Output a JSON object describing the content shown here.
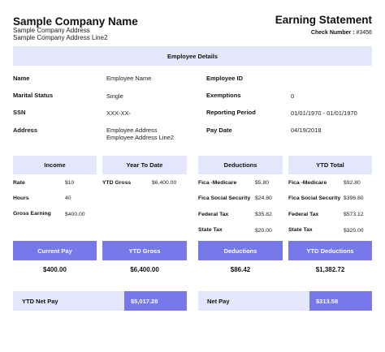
{
  "company": {
    "name": "Sample Company Name",
    "address_line1": "Sample Company Address",
    "address_line2": "Sample Company Address Line2"
  },
  "statement": {
    "title": "Earning Statement",
    "check_label": "Check Number :",
    "check_value": "#3456"
  },
  "employee_details": {
    "header": "Employee Details",
    "name_label": "Name",
    "name_value": "Employee Name",
    "marital_label": "Marital Status",
    "marital_value": "Single",
    "ssn_label": "SSN",
    "ssn_value": "XXX-XX-",
    "address_label": "Address",
    "address_value_line1": "Employee Address",
    "address_value_line2": "Employee Address Line2",
    "employee_id_label": "Employee ID",
    "employee_id_value": "",
    "exemptions_label": "Exemptions",
    "exemptions_value": "0",
    "period_label": "Reporting Period",
    "period_value": "01/01/1970 - 01/01/1970",
    "paydate_label": "Pay Date",
    "paydate_value": "04/19/2018"
  },
  "income": {
    "header": "Income",
    "rows": [
      {
        "label": "Rate",
        "value": "$10"
      },
      {
        "label": "Hours",
        "value": "40"
      },
      {
        "label": "Gross Earning",
        "value": "$400.00"
      }
    ]
  },
  "ytd": {
    "header": "Year To Date",
    "rows": [
      {
        "label": "YTD Gross",
        "value": "$6,400.00"
      }
    ]
  },
  "deductions": {
    "header": "Deductions",
    "rows": [
      {
        "label": "Fica -Medicare",
        "value": "$5.80"
      },
      {
        "label": "Fica Social Security",
        "value": "$24.80"
      },
      {
        "label": "Federal Tax",
        "value": "$35.82"
      },
      {
        "label": "State Tax",
        "value": "$20.00"
      }
    ]
  },
  "ytd_total": {
    "header": "YTD Total",
    "rows": [
      {
        "label": "Fica -Medicare",
        "value": "$92.80"
      },
      {
        "label": "Fica Social Security",
        "value": "$396.80"
      },
      {
        "label": "Federal Tax",
        "value": "$573.12"
      },
      {
        "label": "State Tax",
        "value": "$320.00"
      }
    ]
  },
  "summary": {
    "current_pay_label": "Current Pay",
    "current_pay_value": "$400.00",
    "ytd_gross_label": "YTD Gross",
    "ytd_gross_value": "$6,400.00",
    "deductions_label": "Deductions",
    "deductions_value": "$86.42",
    "ytd_deductions_label": "YTD Deductions",
    "ytd_deductions_value": "$1,382.72"
  },
  "net": {
    "ytd_net_label": "YTD Net Pay",
    "ytd_net_value": "$5,017.28",
    "net_label": "Net Pay",
    "net_value": "$313.58"
  },
  "colors": {
    "band": "#e4e6fc",
    "accent": "#7779ea"
  }
}
